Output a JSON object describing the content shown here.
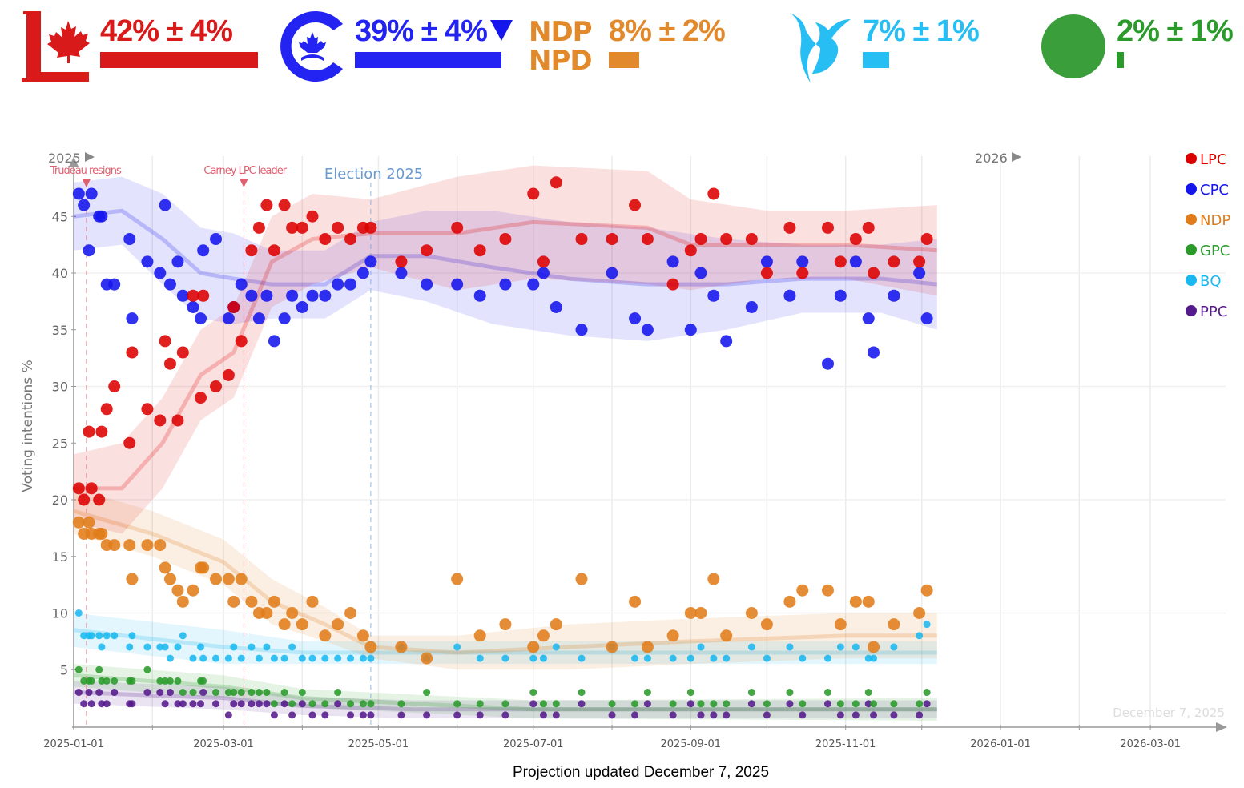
{
  "header": {
    "parties": [
      {
        "id": "LPC",
        "value": "42% ± 4%",
        "pct": 42,
        "color": "#d91a1a",
        "trend_icon": ""
      },
      {
        "id": "CPC",
        "value": "39% ± 4%",
        "pct": 39,
        "color": "#2323f2",
        "trend_icon": "down-triangle"
      },
      {
        "id": "NDP",
        "value": "8% ± 2%",
        "pct": 8,
        "color": "#e2892b",
        "trend_icon": ""
      },
      {
        "id": "BQ",
        "value": "7% ± 1%",
        "pct": 7,
        "color": "#27bef4",
        "trend_icon": ""
      },
      {
        "id": "GPC",
        "value": "2% ± 1%",
        "pct": 2,
        "color": "#3a9e3a",
        "trend_icon": ""
      }
    ],
    "ndp_logo": [
      "NDP",
      "NPD"
    ]
  },
  "footer": "Projection updated December 7, 2025",
  "chart_data": {
    "type": "scatter",
    "title": "",
    "xlabel": "",
    "ylabel": "Voting intentions %",
    "ylim": [
      0,
      50
    ],
    "xlim": [
      "2025-01-01",
      "2026-03-31"
    ],
    "yticks": [
      5,
      10,
      15,
      20,
      25,
      30,
      35,
      40,
      45
    ],
    "xticks": [
      "2025-01-01",
      "2025-03-01",
      "2025-05-01",
      "2025-07-01",
      "2025-09-01",
      "2025-11-01",
      "2026-01-01",
      "2026-03-01"
    ],
    "year_markers": [
      {
        "label": "2025",
        "date": "2025-01-01"
      },
      {
        "label": "2026",
        "date": "2026-01-01"
      }
    ],
    "annotations": [
      {
        "label": "Trudeau resigns",
        "date": "2025-01-06",
        "color": "#e06070"
      },
      {
        "label": "Carney LPC leader",
        "date": "2025-03-09",
        "color": "#e06070"
      },
      {
        "label": "Election 2025",
        "date": "2025-04-28",
        "color": "#6a9ad0"
      }
    ],
    "watermark": "December 7, 2025",
    "legend": {
      "position": "right",
      "entries": [
        "LPC",
        "CPC",
        "NDP",
        "GPC",
        "BQ",
        "PPC"
      ]
    },
    "colors": {
      "LPC": "#dd0000",
      "CPC": "#1515ee",
      "NDP": "#e07d1a",
      "GPC": "#2a9a2a",
      "BQ": "#1ab8f0",
      "PPC": "#551a8b"
    },
    "trends": {
      "LPC": [
        [
          "2025-01-01",
          21,
          3
        ],
        [
          "2025-01-20",
          21,
          4
        ],
        [
          "2025-02-05",
          25,
          4
        ],
        [
          "2025-02-20",
          31,
          4
        ],
        [
          "2025-03-05",
          33,
          4
        ],
        [
          "2025-03-20",
          41,
          4
        ],
        [
          "2025-04-05",
          43,
          4
        ],
        [
          "2025-04-28",
          43.5,
          3
        ],
        [
          "2025-06-01",
          43.5,
          5
        ],
        [
          "2025-07-01",
          44.5,
          5
        ],
        [
          "2025-08-15",
          44,
          5
        ],
        [
          "2025-09-01",
          42.5,
          4
        ],
        [
          "2025-10-01",
          42.5,
          3
        ],
        [
          "2025-11-01",
          42.5,
          3
        ],
        [
          "2025-12-07",
          42,
          4
        ]
      ],
      "CPC": [
        [
          "2025-01-01",
          45,
          3
        ],
        [
          "2025-01-20",
          45.5,
          3
        ],
        [
          "2025-02-05",
          43,
          4
        ],
        [
          "2025-02-20",
          40,
          4
        ],
        [
          "2025-03-05",
          39.5,
          4
        ],
        [
          "2025-03-20",
          39,
          3
        ],
        [
          "2025-04-10",
          39,
          3
        ],
        [
          "2025-04-28",
          41.5,
          3
        ],
        [
          "2025-05-20",
          41.5,
          4
        ],
        [
          "2025-06-15",
          40.5,
          5
        ],
        [
          "2025-07-15",
          39.5,
          5
        ],
        [
          "2025-08-15",
          39,
          5
        ],
        [
          "2025-09-15",
          39,
          4
        ],
        [
          "2025-10-15",
          39.5,
          3
        ],
        [
          "2025-11-15",
          39.5,
          3
        ],
        [
          "2025-12-07",
          39,
          4
        ]
      ],
      "NDP": [
        [
          "2025-01-01",
          19,
          2
        ],
        [
          "2025-02-01",
          17,
          2
        ],
        [
          "2025-03-01",
          14.5,
          2
        ],
        [
          "2025-03-20",
          11,
          2
        ],
        [
          "2025-04-10",
          9,
          1.5
        ],
        [
          "2025-04-28",
          7,
          1
        ],
        [
          "2025-06-01",
          6.5,
          1.5
        ],
        [
          "2025-07-15",
          7,
          2
        ],
        [
          "2025-09-01",
          7.5,
          2
        ],
        [
          "2025-11-01",
          8,
          2
        ],
        [
          "2025-12-07",
          8,
          2
        ]
      ],
      "BQ": [
        [
          "2025-01-01",
          8.5,
          1.5
        ],
        [
          "2025-03-01",
          7,
          1.5
        ],
        [
          "2025-04-01",
          6.5,
          1
        ],
        [
          "2025-05-15",
          6.5,
          1
        ],
        [
          "2025-08-01",
          6.5,
          1
        ],
        [
          "2025-12-07",
          6.5,
          1
        ]
      ],
      "GPC": [
        [
          "2025-01-01",
          4.5,
          1
        ],
        [
          "2025-03-01",
          3.5,
          1
        ],
        [
          "2025-04-01",
          2.5,
          0.8
        ],
        [
          "2025-05-15",
          2,
          0.8
        ],
        [
          "2025-07-01",
          1.5,
          0.8
        ],
        [
          "2025-12-07",
          1.5,
          1
        ]
      ],
      "PPC": [
        [
          "2025-01-01",
          3,
          1
        ],
        [
          "2025-03-01",
          2.5,
          1
        ],
        [
          "2025-04-01",
          1.8,
          0.8
        ],
        [
          "2025-05-15",
          1.5,
          0.8
        ],
        [
          "2025-12-07",
          1.5,
          0.8
        ]
      ]
    },
    "polls": [
      [
        "2025-01-03",
        21,
        47,
        18,
        10,
        5,
        3
      ],
      [
        "2025-01-05",
        20,
        46,
        17,
        8,
        4,
        2
      ],
      [
        "2025-01-07",
        26,
        42,
        18,
        8,
        4,
        3
      ],
      [
        "2025-01-08",
        21,
        47,
        17,
        8,
        4,
        2
      ],
      [
        "2025-01-11",
        20,
        45,
        17,
        8,
        5,
        3
      ],
      [
        "2025-01-12",
        26,
        45,
        17,
        7,
        4,
        2
      ],
      [
        "2025-01-14",
        28,
        39,
        16,
        8,
        4,
        2
      ],
      [
        "2025-01-17",
        30,
        39,
        16,
        8,
        4,
        3
      ],
      [
        "2025-01-23",
        25,
        43,
        16,
        7,
        4,
        2
      ],
      [
        "2025-01-24",
        33,
        36,
        13,
        8,
        4,
        2
      ],
      [
        "2025-01-30",
        28,
        41,
        16,
        7,
        5,
        3
      ],
      [
        "2025-02-04",
        27,
        40,
        16,
        7,
        4,
        3
      ],
      [
        "2025-02-06",
        34,
        46,
        14,
        7,
        4,
        2
      ],
      [
        "2025-02-08",
        32,
        39,
        13,
        6,
        4,
        3
      ],
      [
        "2025-02-11",
        27,
        41,
        12,
        7,
        4,
        2
      ],
      [
        "2025-02-13",
        33,
        38,
        11,
        8,
        3,
        2
      ],
      [
        "2025-02-17",
        38,
        37,
        12,
        6,
        3,
        2
      ],
      [
        "2025-02-20",
        29,
        36,
        14,
        7,
        4,
        2
      ],
      [
        "2025-02-21",
        38,
        42,
        14,
        6,
        4,
        3
      ],
      [
        "2025-02-26",
        30,
        43,
        13,
        6,
        3,
        2
      ],
      [
        "2025-03-03",
        31,
        36,
        13,
        6,
        3,
        1
      ],
      [
        "2025-03-05",
        37,
        37,
        11,
        7,
        3,
        2
      ],
      [
        "2025-03-08",
        34,
        39,
        13,
        6,
        3,
        2
      ],
      [
        "2025-03-12",
        42,
        38,
        11,
        7,
        3,
        2
      ],
      [
        "2025-03-15",
        44,
        36,
        10,
        6,
        3,
        2
      ],
      [
        "2025-03-18",
        46,
        38,
        10,
        7,
        3,
        2
      ],
      [
        "2025-03-21",
        42,
        34,
        11,
        6,
        2,
        1
      ],
      [
        "2025-03-25",
        46,
        36,
        9,
        6,
        3,
        2
      ],
      [
        "2025-03-28",
        44,
        38,
        10,
        7,
        2,
        1
      ],
      [
        "2025-04-01",
        44,
        37,
        9,
        6,
        3,
        2
      ],
      [
        "2025-04-05",
        45,
        38,
        11,
        6,
        2,
        1
      ],
      [
        "2025-04-10",
        43,
        38,
        8,
        6,
        2,
        1
      ],
      [
        "2025-04-15",
        44,
        39,
        9,
        6,
        3,
        2
      ],
      [
        "2025-04-20",
        43,
        39,
        10,
        6,
        2,
        1
      ],
      [
        "2025-04-25",
        44,
        40,
        8,
        6,
        2,
        1
      ],
      [
        "2025-04-28",
        44,
        41,
        7,
        6,
        2,
        1
      ],
      [
        "2025-05-10",
        41,
        40,
        7,
        7,
        2,
        1
      ],
      [
        "2025-05-20",
        42,
        39,
        6,
        6,
        3,
        1
      ],
      [
        "2025-06-01",
        44,
        39,
        13,
        7,
        2,
        1
      ],
      [
        "2025-06-10",
        42,
        38,
        8,
        6,
        2,
        1
      ],
      [
        "2025-06-20",
        43,
        39,
        9,
        6,
        2,
        1
      ],
      [
        "2025-07-01",
        47,
        39,
        7,
        6,
        3,
        2
      ],
      [
        "2025-07-05",
        41,
        40,
        8,
        6,
        2,
        1
      ],
      [
        "2025-07-10",
        48,
        37,
        9,
        7,
        2,
        1
      ],
      [
        "2025-07-20",
        43,
        35,
        13,
        6,
        3,
        2
      ],
      [
        "2025-08-01",
        43,
        40,
        7,
        7,
        2,
        1
      ],
      [
        "2025-08-10",
        46,
        36,
        11,
        6,
        2,
        1
      ],
      [
        "2025-08-15",
        43,
        35,
        7,
        6,
        3,
        2
      ],
      [
        "2025-08-25",
        39,
        41,
        8,
        6,
        2,
        1
      ],
      [
        "2025-09-01",
        42,
        35,
        10,
        6,
        3,
        2
      ],
      [
        "2025-09-05",
        43,
        40,
        10,
        7,
        2,
        1
      ],
      [
        "2025-09-10",
        47,
        38,
        13,
        6,
        2,
        1
      ],
      [
        "2025-09-15",
        43,
        34,
        8,
        6,
        2,
        1
      ],
      [
        "2025-09-25",
        43,
        37,
        10,
        7,
        3,
        2
      ],
      [
        "2025-10-01",
        40,
        41,
        9,
        6,
        2,
        1
      ],
      [
        "2025-10-10",
        44,
        38,
        11,
        7,
        3,
        2
      ],
      [
        "2025-10-15",
        40,
        41,
        12,
        6,
        2,
        1
      ],
      [
        "2025-10-25",
        44,
        32,
        12,
        6,
        3,
        2
      ],
      [
        "2025-10-30",
        41,
        38,
        9,
        7,
        2,
        1
      ],
      [
        "2025-11-05",
        43,
        41,
        11,
        7,
        2,
        1
      ],
      [
        "2025-11-10",
        44,
        36,
        11,
        6,
        3,
        2
      ],
      [
        "2025-11-12",
        40,
        33,
        7,
        6,
        2,
        1
      ],
      [
        "2025-11-20",
        41,
        38,
        9,
        7,
        2,
        1
      ],
      [
        "2025-11-30",
        41,
        40,
        10,
        8,
        2,
        1
      ],
      [
        "2025-12-03",
        43,
        36,
        12,
        9,
        3,
        2
      ]
    ]
  }
}
